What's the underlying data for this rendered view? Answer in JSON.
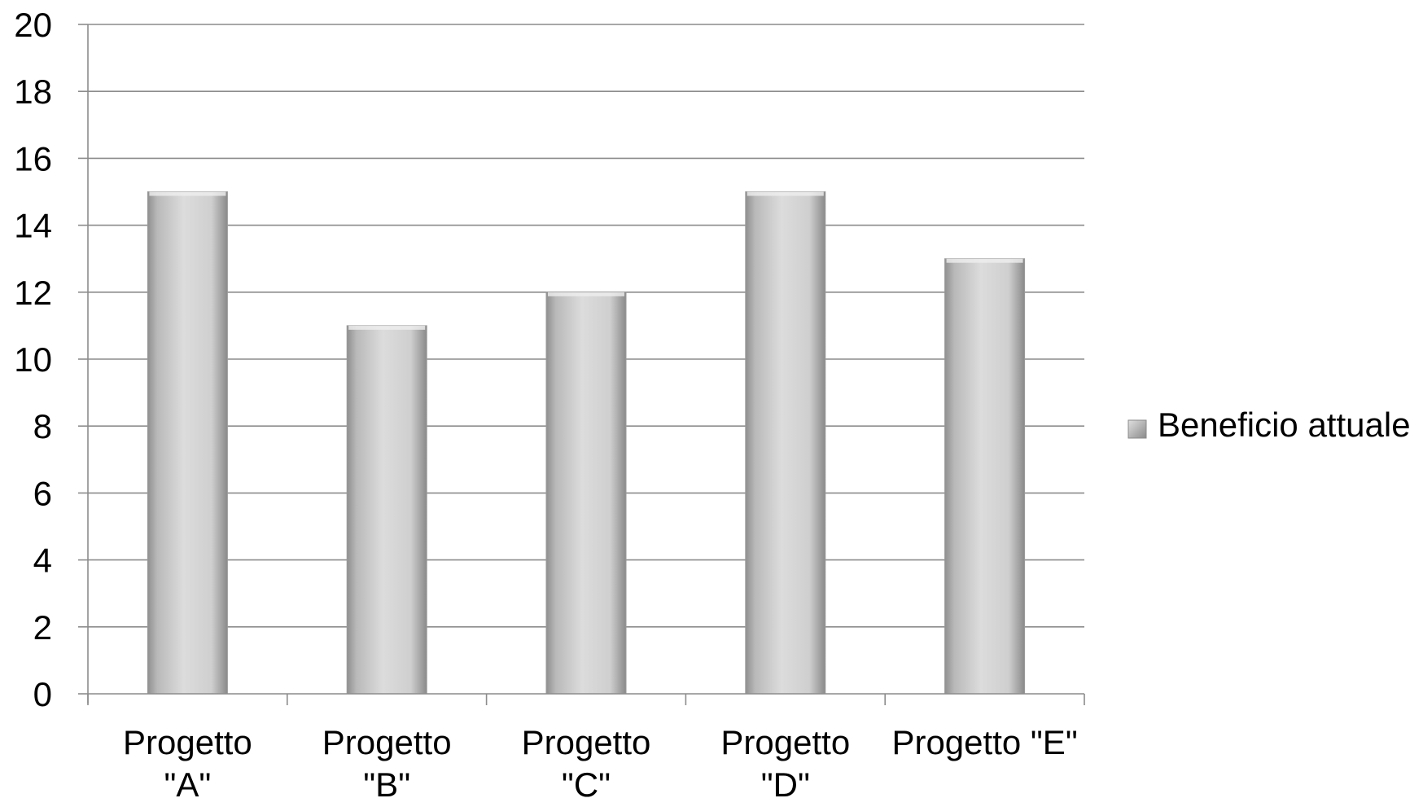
{
  "chart_data": {
    "type": "bar",
    "categories": [
      [
        "Progetto",
        "\"A\""
      ],
      [
        "Progetto",
        "\"B\""
      ],
      [
        "Progetto",
        "\"C\""
      ],
      [
        "Progetto",
        "\"D\""
      ],
      [
        "Progetto \"E\""
      ]
    ],
    "series": [
      {
        "name": "Beneficio attuale",
        "values": [
          15,
          11,
          12,
          15,
          13
        ]
      }
    ],
    "ylim": [
      0,
      20
    ],
    "yticks": [
      0,
      2,
      4,
      6,
      8,
      10,
      12,
      14,
      16,
      18,
      20
    ],
    "grid": true,
    "legend_position": "right",
    "colors": {
      "bar_dark": "#8f8f8f",
      "bar_light": "#d9d9d9",
      "grid": "#8c8c8c",
      "axis": "#8c8c8c"
    }
  }
}
